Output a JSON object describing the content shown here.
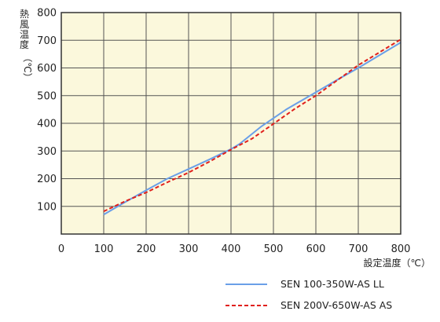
{
  "chart_data": {
    "type": "line",
    "xlabel": "設定温度（℃）",
    "ylabel_chars": [
      "熱",
      "風",
      "温",
      "度"
    ],
    "ylabel_unit": "（℃）",
    "xlim": [
      0,
      800
    ],
    "ylim": [
      0,
      800
    ],
    "x_ticks": [
      0,
      100,
      200,
      300,
      400,
      500,
      600,
      700,
      800
    ],
    "y_ticks": [
      100,
      200,
      300,
      400,
      500,
      600,
      700,
      800
    ],
    "grid": true,
    "background_color": "#fbf8dc",
    "legend_position": "bottom-right",
    "series": [
      {
        "name": "SEN 100-350W-AS LL",
        "color": "#6a9fe8",
        "style": "solid",
        "x": [
          100,
          150,
          200,
          250,
          300,
          350,
          400,
          420,
          470,
          530,
          600,
          650,
          700,
          800
        ],
        "y": [
          70,
          115,
          158,
          200,
          235,
          270,
          307,
          325,
          387,
          450,
          512,
          557,
          600,
          692
        ]
      },
      {
        "name": "SEN 200V-650W-AS AS",
        "color": "#e0201c",
        "style": "dashed",
        "x": [
          100,
          150,
          200,
          250,
          300,
          350,
          400,
          450,
          500,
          550,
          600,
          650,
          700,
          800
        ],
        "y": [
          82,
          118,
          150,
          187,
          222,
          262,
          305,
          345,
          398,
          452,
          500,
          555,
          610,
          703
        ]
      }
    ]
  }
}
